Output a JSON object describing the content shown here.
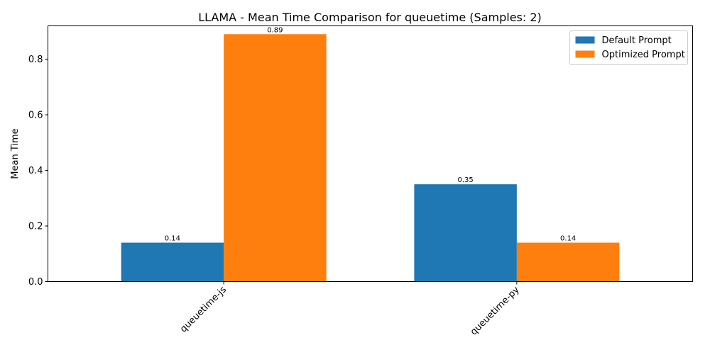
{
  "chart_data": {
    "type": "bar",
    "title": "LLAMA - Mean Time Comparison for queuetime (Samples: 2)",
    "xlabel": "",
    "ylabel": "Mean Time",
    "categories": [
      "queuetime-js",
      "queuetime-py"
    ],
    "series": [
      {
        "name": "Default Prompt",
        "color": "#1f77b4",
        "values": [
          0.14,
          0.35
        ]
      },
      {
        "name": "Optimized Prompt",
        "color": "#ff7f0e",
        "values": [
          0.89,
          0.14
        ]
      }
    ],
    "data_labels": [
      [
        "0.14",
        "0.35"
      ],
      [
        "0.89",
        "0.14"
      ]
    ],
    "ylim": [
      0,
      0.92
    ],
    "yticks": [
      0.0,
      0.2,
      0.4,
      0.6,
      0.8
    ],
    "ytick_labels": [
      "0.0",
      "0.2",
      "0.4",
      "0.6",
      "0.8"
    ],
    "grid": false,
    "legend_position": "top-right"
  }
}
